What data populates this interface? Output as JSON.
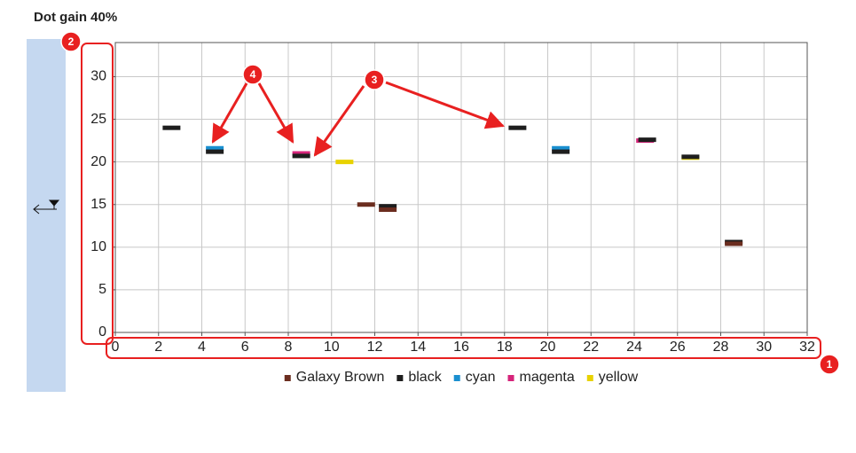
{
  "chart_data": {
    "type": "scatter-bar",
    "title": "Dot gain 40%",
    "series": [
      {
        "name": "Galaxy Brown",
        "color": "#6b2d1f",
        "x": [
          11.6,
          12.6,
          28.6
        ],
        "values": [
          15,
          14.4,
          10.4
        ]
      },
      {
        "name": "black",
        "color": "#1e1e1e",
        "x": [
          2.6,
          4.6,
          8.6,
          12.6,
          18.6,
          20.6,
          24.6,
          26.6,
          28.6
        ],
        "values": [
          24,
          21.2,
          20.7,
          14.8,
          24,
          21.2,
          22.6,
          20.6,
          10.6
        ]
      },
      {
        "name": "cyan",
        "color": "#1a8fd0",
        "x": [
          4.6,
          20.6
        ],
        "values": [
          21.6,
          21.6
        ]
      },
      {
        "name": "magenta",
        "color": "#d6247a",
        "x": [
          8.6,
          24.5
        ],
        "values": [
          21,
          22.5
        ]
      },
      {
        "name": "yellow",
        "color": "#e8d200",
        "x": [
          10.6,
          26.6
        ],
        "values": [
          20,
          20.5
        ]
      }
    ],
    "xlim": [
      0,
      32
    ],
    "xticks": [
      0,
      2,
      4,
      6,
      8,
      10,
      12,
      14,
      16,
      18,
      20,
      22,
      24,
      26,
      28,
      30,
      32
    ],
    "ylim": [
      0,
      34
    ],
    "yticks": [
      0,
      5,
      10,
      15,
      20,
      25,
      30
    ],
    "grid": true,
    "legend": "bottom"
  },
  "callouts": [
    "1",
    "2",
    "3",
    "4"
  ]
}
